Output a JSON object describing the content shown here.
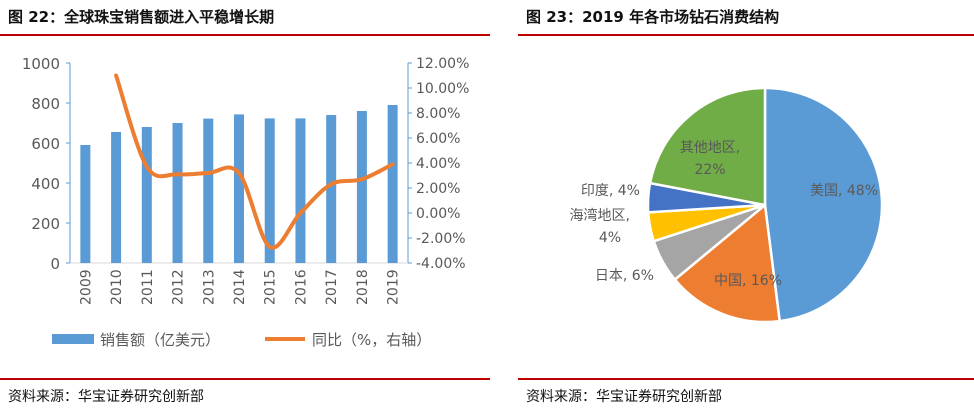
{
  "left": {
    "title": "图 22：全球珠宝销售额进入平稳增长期",
    "source": "资料来源：华宝证券研究创新部"
  },
  "right": {
    "title": "图 23：2019 年各市场钻石消费结构",
    "source": "资料来源：华宝证券研究创新部"
  },
  "chart_data": [
    {
      "type": "bar",
      "title": "全球珠宝销售额进入平稳增长期",
      "categories": [
        "2009",
        "2010",
        "2011",
        "2012",
        "2013",
        "2014",
        "2015",
        "2016",
        "2017",
        "2018",
        "2019"
      ],
      "series": [
        {
          "name": "销售额（亿美元）",
          "type": "bar",
          "axis": "left",
          "color": "#5b9bd5",
          "values": [
            590,
            655,
            680,
            700,
            722,
            743,
            723,
            723,
            740,
            760,
            790
          ]
        },
        {
          "name": "同比（%，右轴）",
          "type": "line",
          "axis": "right",
          "color": "#ed7d31",
          "values": [
            null,
            11.0,
            3.7,
            3.1,
            3.2,
            3.2,
            -2.7,
            0.0,
            2.3,
            2.7,
            3.9
          ]
        }
      ],
      "ylim": [
        0,
        1000
      ],
      "yticks": [
        "0",
        "200",
        "400",
        "600",
        "800",
        "1000"
      ],
      "y2lim": [
        -4,
        12
      ],
      "y2ticks": [
        "-4.00%",
        "-2.00%",
        "0.00%",
        "2.00%",
        "4.00%",
        "6.00%",
        "8.00%",
        "10.00%",
        "12.00%"
      ],
      "legend": "bottom"
    },
    {
      "type": "pie",
      "title": "2019 年各市场钻石消费结构",
      "slices": [
        {
          "label": "美国, 48%",
          "value": 48,
          "color": "#5b9bd5"
        },
        {
          "label": "中国, 16%",
          "value": 16,
          "color": "#ed7d31"
        },
        {
          "label": "日本, 6%",
          "value": 6,
          "color": "#a5a5a5"
        },
        {
          "label": "海湾地区, 4%",
          "value": 4,
          "color": "#ffc000"
        },
        {
          "label": "印度, 4%",
          "value": 4,
          "color": "#4472c4"
        },
        {
          "label": "其他地区, 22%",
          "value": 22,
          "color": "#70ad47"
        }
      ]
    }
  ]
}
